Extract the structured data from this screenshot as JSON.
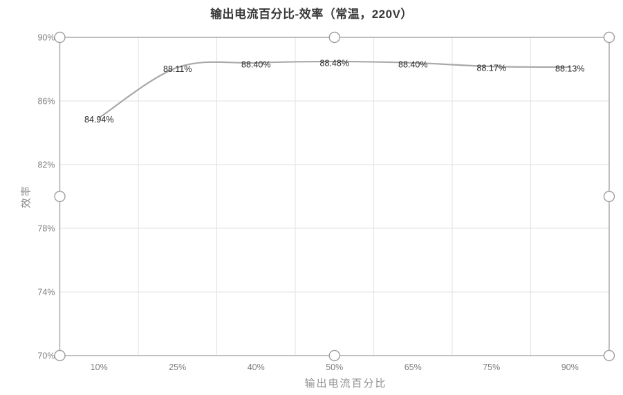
{
  "chart_data": {
    "type": "line",
    "title": "输出电流百分比-效率（常温，220V）",
    "xlabel": "输出电流百分比",
    "ylabel": "效率",
    "categories": [
      "10%",
      "25%",
      "40%",
      "50%",
      "65%",
      "75%",
      "90%"
    ],
    "values": [
      84.94,
      88.11,
      88.4,
      88.48,
      88.4,
      88.17,
      88.13
    ],
    "point_labels": [
      "84.94%",
      "88.11%",
      "88.40%",
      "88.48%",
      "88.40%",
      "88.17%",
      "88.13%"
    ],
    "ylim": [
      70,
      90
    ],
    "ytick_values": [
      70,
      74,
      78,
      82,
      86,
      90
    ],
    "ytick_labels": [
      "70%",
      "74%",
      "78%",
      "82%",
      "86%",
      "90%"
    ],
    "grid": true,
    "legend": "none",
    "smooth": true,
    "markers": "none",
    "selection": {
      "handle_shape": "circle",
      "handle_count": 8
    },
    "colors": {
      "line": "#a8a8a8",
      "grid": "#e2e2e2",
      "axis": "#a6a6a6",
      "tick_text": "#7d7d7d",
      "data_label": "#262626",
      "title_text": "#383838",
      "axis_title_text": "#8f8f8f",
      "handle_fill": "#ffffff",
      "handle_stroke": "#9e9e9e",
      "background": "#ffffff"
    }
  }
}
